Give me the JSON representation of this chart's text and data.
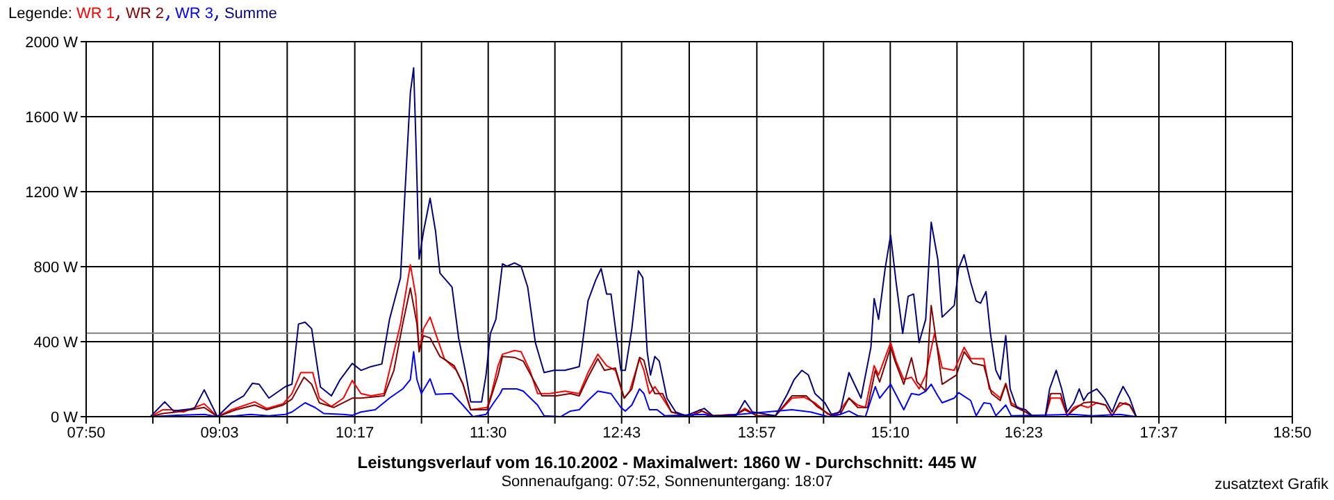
{
  "chart_data": {
    "type": "line",
    "title": "Leistungsverlauf vom 16.10.2002 - Maximalwert: 1860 W - Durchschnitt: 445 W",
    "subtitle": "Sonnenaufgang: 07:52, Sonnenuntergang: 18:07",
    "legend_title": "Legende:",
    "annotations": [
      "zusatztext Grafik"
    ],
    "xlim": [
      7.8333,
      18.8333
    ],
    "xticks": [
      {
        "value": 7.8333,
        "label": "07:50"
      },
      {
        "value": 8.4417,
        "label": null
      },
      {
        "value": 9.05,
        "label": "09:03"
      },
      {
        "value": 9.6667,
        "label": null
      },
      {
        "value": 10.2833,
        "label": "10:17"
      },
      {
        "value": 10.8917,
        "label": null
      },
      {
        "value": 11.5,
        "label": "11:30"
      },
      {
        "value": 12.1083,
        "label": null
      },
      {
        "value": 12.7167,
        "label": "12:43"
      },
      {
        "value": 13.3333,
        "label": null
      },
      {
        "value": 13.95,
        "label": "13:57"
      },
      {
        "value": 14.5583,
        "label": null
      },
      {
        "value": 15.1667,
        "label": "15:10"
      },
      {
        "value": 15.775,
        "label": null
      },
      {
        "value": 16.3833,
        "label": "16:23"
      },
      {
        "value": 17.0,
        "label": null
      },
      {
        "value": 17.6167,
        "label": "17:37"
      },
      {
        "value": 18.225,
        "label": null
      },
      {
        "value": 18.8333,
        "label": "18:50"
      }
    ],
    "ylim": [
      0,
      2000
    ],
    "yticks": [
      {
        "value": 0,
        "label": "0 W"
      },
      {
        "value": 400,
        "label": "400 W"
      },
      {
        "value": 800,
        "label": "800 W"
      },
      {
        "value": 1200,
        "label": "1200 W"
      },
      {
        "value": 1600,
        "label": "1600 W"
      },
      {
        "value": 2000,
        "label": "2000 W"
      }
    ],
    "grid": true,
    "legend": "top left",
    "line_style": "solid",
    "ref_lines": [
      {
        "axis": "y",
        "value": 445,
        "label": null,
        "color": "#808080"
      }
    ],
    "series": [
      {
        "name": "WR 1",
        "color": "#ff0000",
        "x": [
          8.42,
          8.53,
          8.61,
          8.72,
          8.91,
          9.03,
          9.16,
          9.37,
          9.48,
          9.63,
          9.71,
          9.79,
          9.9,
          9.96,
          10.07,
          10.18,
          10.26,
          10.34,
          10.43,
          10.55,
          10.6,
          10.7,
          10.79,
          10.84,
          10.87,
          10.91,
          10.97,
          11.02,
          11.1,
          11.21,
          11.27,
          11.34,
          11.49,
          11.53,
          11.59,
          11.63,
          11.74,
          11.8,
          11.88,
          11.95,
          12.06,
          12.2,
          12.33,
          12.41,
          12.5,
          12.58,
          12.66,
          12.74,
          12.79,
          12.88,
          12.92,
          12.97,
          13.02,
          13.09,
          13.17,
          13.34,
          13.43,
          13.53,
          13.76,
          13.84,
          13.95,
          14.12,
          14.27,
          14.38,
          14.48,
          14.6,
          14.68,
          14.79,
          14.87,
          14.94,
          15.02,
          15.06,
          15.17,
          15.22,
          15.29,
          15.36,
          15.43,
          15.49,
          15.57,
          15.64,
          15.75,
          15.84,
          15.9,
          16.02,
          16.07,
          16.17,
          16.22,
          16.27,
          16.4,
          16.47,
          16.58,
          16.63,
          16.72,
          16.78,
          16.84,
          16.9,
          16.97,
          17.05,
          17.13,
          17.19,
          17.24,
          17.31,
          17.35,
          17.41
        ],
        "values": [
          0,
          37,
          37,
          25,
          69,
          0,
          37,
          79,
          44,
          69,
          123,
          235,
          235,
          99,
          54,
          99,
          193,
          123,
          111,
          123,
          247,
          494,
          810,
          642,
          346,
          469,
          531,
          444,
          309,
          247,
          173,
          37,
          49,
          123,
          272,
          333,
          353,
          346,
          247,
          123,
          123,
          136,
          123,
          235,
          333,
          272,
          247,
          99,
          136,
          309,
          247,
          123,
          160,
          99,
          25,
          0,
          37,
          5,
          12,
          44,
          5,
          5,
          99,
          104,
          74,
          12,
          12,
          99,
          62,
          49,
          272,
          222,
          395,
          296,
          198,
          210,
          148,
          222,
          444,
          259,
          247,
          370,
          309,
          309,
          148,
          99,
          178,
          74,
          25,
          0,
          0,
          99,
          99,
          5,
          49,
          62,
          49,
          74,
          62,
          5,
          49,
          74,
          62,
          0
        ]
      },
      {
        "name": "WR 2",
        "color": "#800000",
        "x": [
          8.42,
          8.53,
          8.66,
          8.91,
          9.03,
          9.2,
          9.37,
          9.48,
          9.63,
          9.71,
          9.82,
          9.89,
          9.96,
          10.09,
          10.26,
          10.34,
          10.55,
          10.64,
          10.72,
          10.79,
          10.85,
          10.87,
          10.91,
          10.97,
          11.06,
          11.19,
          11.27,
          11.34,
          11.49,
          11.55,
          11.59,
          11.63,
          11.74,
          11.82,
          11.9,
          11.99,
          12.12,
          12.25,
          12.33,
          12.41,
          12.5,
          12.56,
          12.66,
          12.74,
          12.81,
          12.88,
          12.92,
          12.97,
          13.02,
          13.09,
          13.17,
          13.34,
          13.45,
          13.55,
          13.76,
          13.84,
          13.95,
          14.12,
          14.27,
          14.4,
          14.5,
          14.63,
          14.71,
          14.79,
          14.87,
          14.96,
          15.03,
          15.07,
          15.17,
          15.21,
          15.29,
          15.36,
          15.41,
          15.49,
          15.54,
          15.6,
          15.64,
          15.77,
          15.84,
          15.92,
          16.02,
          16.09,
          16.17,
          16.22,
          16.27,
          16.4,
          16.47,
          16.58,
          16.63,
          16.72,
          16.78,
          16.84,
          16.93,
          17.01,
          17.13,
          17.19,
          17.26,
          17.35,
          17.41
        ],
        "values": [
          0,
          17,
          25,
          49,
          0,
          37,
          62,
          37,
          62,
          94,
          210,
          173,
          74,
          49,
          99,
          99,
          111,
          247,
          494,
          686,
          494,
          346,
          432,
          420,
          321,
          272,
          173,
          37,
          37,
          148,
          222,
          321,
          316,
          296,
          210,
          111,
          111,
          123,
          111,
          210,
          309,
          247,
          259,
          99,
          148,
          316,
          301,
          185,
          123,
          123,
          25,
          0,
          30,
          5,
          12,
          37,
          5,
          5,
          111,
          111,
          54,
          5,
          12,
          99,
          49,
          49,
          247,
          185,
          370,
          296,
          173,
          314,
          185,
          136,
          593,
          346,
          173,
          222,
          346,
          284,
          272,
          123,
          86,
          173,
          62,
          25,
          0,
          0,
          123,
          123,
          5,
          37,
          74,
          79,
          62,
          5,
          74,
          62,
          0
        ]
      },
      {
        "name": "WR 3",
        "color": "#0000ff",
        "x": [
          8.42,
          8.66,
          8.91,
          9.03,
          9.2,
          9.33,
          9.5,
          9.65,
          9.71,
          9.83,
          9.92,
          10.0,
          10.18,
          10.26,
          10.34,
          10.47,
          10.6,
          10.72,
          10.79,
          10.82,
          10.85,
          10.89,
          10.97,
          11.02,
          11.17,
          11.25,
          11.36,
          11.48,
          11.55,
          11.61,
          11.63,
          11.76,
          11.82,
          11.95,
          12.01,
          12.16,
          12.25,
          12.33,
          12.41,
          12.5,
          12.62,
          12.71,
          12.75,
          12.81,
          12.88,
          12.92,
          12.97,
          13.04,
          13.11,
          13.47,
          13.55,
          14.27,
          14.44,
          14.6,
          14.71,
          14.79,
          14.87,
          14.94,
          15.03,
          15.07,
          15.17,
          15.29,
          15.36,
          15.43,
          15.49,
          15.54,
          15.6,
          15.64,
          15.75,
          15.79,
          15.9,
          15.95,
          16.02,
          16.08,
          16.13,
          16.22,
          16.27,
          16.83,
          17.01,
          17.26,
          17.41
        ],
        "values": [
          0,
          7,
          12,
          0,
          5,
          12,
          5,
          12,
          25,
          74,
          49,
          17,
          12,
          7,
          25,
          37,
          99,
          148,
          198,
          346,
          198,
          123,
          202,
          119,
          123,
          74,
          0,
          12,
          74,
          123,
          148,
          148,
          136,
          62,
          5,
          0,
          30,
          37,
          86,
          136,
          123,
          49,
          30,
          62,
          148,
          123,
          37,
          37,
          5,
          12,
          0,
          37,
          25,
          0,
          12,
          30,
          5,
          0,
          160,
          99,
          173,
          37,
          123,
          116,
          136,
          173,
          111,
          74,
          99,
          128,
          86,
          5,
          74,
          69,
          5,
          62,
          5,
          12,
          5,
          12,
          0
        ]
      },
      {
        "name": "Summe",
        "color": "#000080",
        "x": [
          8.42,
          8.55,
          8.63,
          8.82,
          8.91,
          9.03,
          9.16,
          9.27,
          9.35,
          9.41,
          9.5,
          9.65,
          9.71,
          9.77,
          9.83,
          9.89,
          9.94,
          9.97,
          10.07,
          10.15,
          10.26,
          10.34,
          10.43,
          10.53,
          10.6,
          10.7,
          10.74,
          10.79,
          10.82,
          10.84,
          10.87,
          10.91,
          10.97,
          11.02,
          11.06,
          11.17,
          11.23,
          11.29,
          11.34,
          11.44,
          11.48,
          11.52,
          11.57,
          11.63,
          11.67,
          11.74,
          11.8,
          11.86,
          11.93,
          12.01,
          12.1,
          12.2,
          12.33,
          12.35,
          12.41,
          12.48,
          12.53,
          12.58,
          12.62,
          12.71,
          12.75,
          12.81,
          12.87,
          12.91,
          12.95,
          12.98,
          13.02,
          13.06,
          13.13,
          13.21,
          13.3,
          13.47,
          13.55,
          13.76,
          13.84,
          13.91,
          14.12,
          14.23,
          14.29,
          14.36,
          14.42,
          14.48,
          14.57,
          14.63,
          14.71,
          14.79,
          14.84,
          14.9,
          14.99,
          15.02,
          15.06,
          15.12,
          15.17,
          15.22,
          15.28,
          15.33,
          15.38,
          15.43,
          15.49,
          15.54,
          15.6,
          15.64,
          15.75,
          15.79,
          15.84,
          15.9,
          15.95,
          15.99,
          16.04,
          16.08,
          16.13,
          16.17,
          16.22,
          16.26,
          16.32,
          16.4,
          16.47,
          16.58,
          16.62,
          16.68,
          16.73,
          16.78,
          16.84,
          16.89,
          16.93,
          16.97,
          17.05,
          17.12,
          17.19,
          17.24,
          17.29,
          17.35,
          17.41
        ],
        "values": [
          0,
          79,
          30,
          44,
          143,
          0,
          74,
          111,
          178,
          173,
          99,
          160,
          173,
          494,
          504,
          469,
          272,
          158,
          111,
          198,
          284,
          247,
          267,
          281,
          519,
          741,
          1185,
          1728,
          1860,
          1481,
          840,
          988,
          1165,
          988,
          765,
          691,
          420,
          247,
          79,
          79,
          222,
          444,
          519,
          815,
          802,
          820,
          802,
          691,
          395,
          235,
          247,
          247,
          267,
          346,
          617,
          728,
          790,
          654,
          654,
          247,
          247,
          469,
          778,
          741,
          346,
          222,
          321,
          296,
          99,
          25,
          5,
          44,
          5,
          5,
          86,
          25,
          5,
          123,
          198,
          247,
          222,
          123,
          74,
          12,
          25,
          235,
          173,
          99,
          370,
          630,
          519,
          790,
          968,
          716,
          444,
          642,
          654,
          395,
          519,
          1037,
          840,
          531,
          593,
          790,
          864,
          716,
          617,
          605,
          667,
          444,
          247,
          198,
          432,
          148,
          49,
          37,
          0,
          0,
          148,
          247,
          148,
          25,
          74,
          148,
          86,
          123,
          148,
          99,
          25,
          99,
          161,
          99,
          0
        ]
      }
    ]
  }
}
